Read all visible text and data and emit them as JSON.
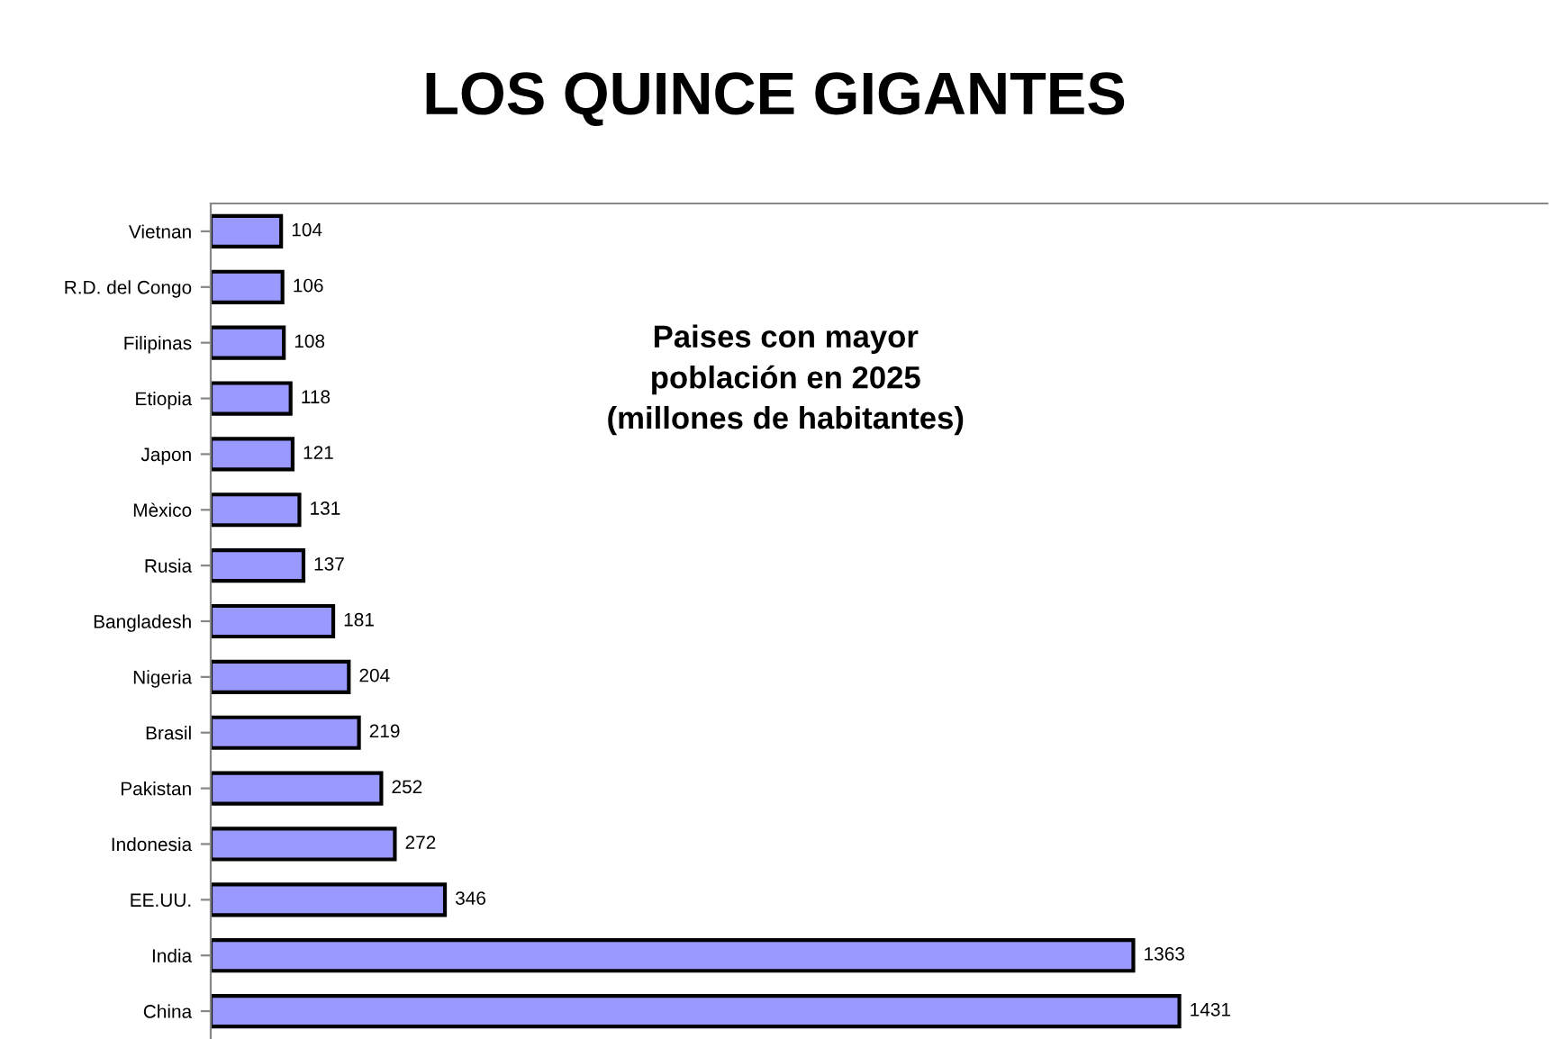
{
  "chart_data": {
    "type": "bar",
    "orientation": "horizontal",
    "title": "LOS QUINCE GIGANTES",
    "subtitle": "Paises con mayor\npoblación en 2025\n(millones de habitantes)",
    "categories": [
      "Vietnan",
      "R.D. del Congo",
      "Filipinas",
      "Etiopia",
      "Japon",
      "Mèxico",
      "Rusia",
      "Bangladesh",
      "Nigeria",
      "Brasil",
      "Pakistan",
      "Indonesia",
      "EE.UU.",
      "India",
      "China"
    ],
    "values": [
      104,
      106,
      108,
      118,
      121,
      131,
      137,
      181,
      204,
      219,
      252,
      272,
      346,
      1363,
      1431
    ],
    "color": "#9999ff",
    "data_labels": true,
    "grid": false,
    "legend": false,
    "tick_labels": "y"
  }
}
